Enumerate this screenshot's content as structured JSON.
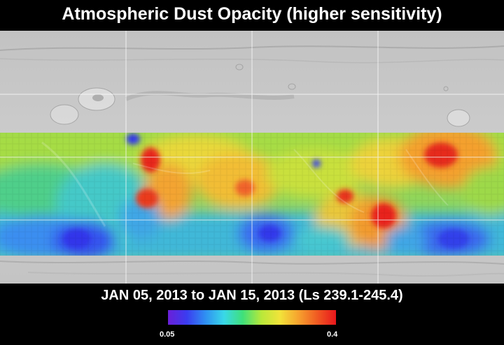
{
  "title": "Atmospheric Dust Opacity (higher sensitivity)",
  "date_range": "JAN 05, 2013 to JAN 15, 2013 (Ls 239.1-245.4)",
  "colorbar": {
    "min_label": "0.05",
    "max_label": "0.4",
    "min_value": 0.05,
    "max_value": 0.4,
    "colors": [
      "#6a1fd8",
      "#3b3cf0",
      "#2f8ff2",
      "#39d8e8",
      "#3fe07a",
      "#b8e83a",
      "#f2e33a",
      "#f6a12e",
      "#f05a22",
      "#e8161c"
    ]
  },
  "map": {
    "projection": "simple cylindrical",
    "basemap": "shaded relief",
    "grid": true,
    "data_band": "mid latitudes"
  }
}
